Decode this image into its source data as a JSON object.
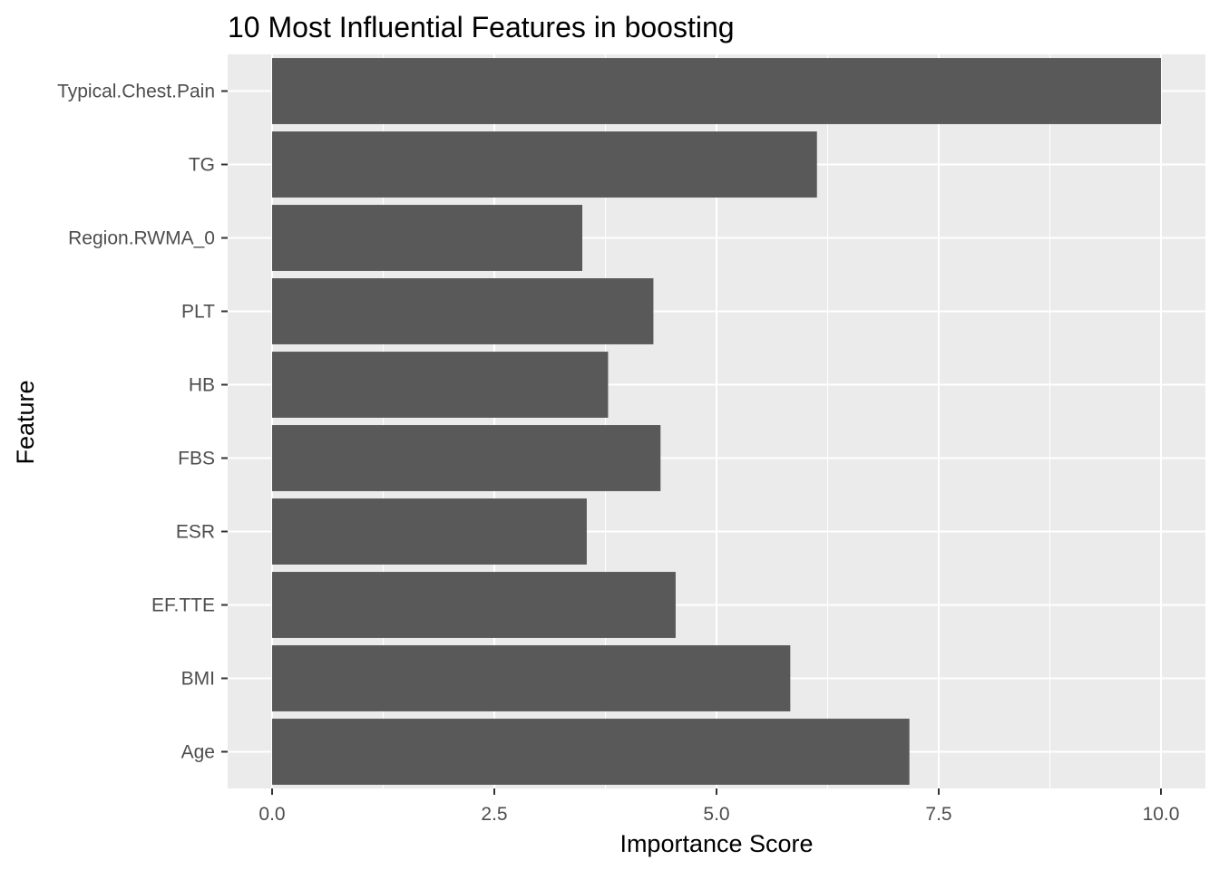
{
  "chart_data": {
    "type": "bar",
    "orientation": "horizontal",
    "title": "10 Most Influential Features in boosting",
    "xlabel": "Importance Score",
    "ylabel": "Feature",
    "categories": [
      "Age",
      "BMI",
      "EF.TTE",
      "ESR",
      "FBS",
      "HB",
      "PLT",
      "Region.RWMA_0",
      "TG",
      "Typical.Chest.Pain"
    ],
    "values": [
      7.17,
      5.83,
      4.54,
      3.54,
      4.37,
      3.78,
      4.29,
      3.49,
      6.13,
      10.0
    ],
    "xlim": [
      -0.5,
      10.5
    ],
    "xticks": [
      0,
      2.5,
      5,
      7.5,
      10
    ],
    "xtick_labels": [
      "0.0",
      "2.5",
      "5.0",
      "7.5",
      "10.0"
    ],
    "grid": true,
    "legend": "none",
    "colors": {
      "bar": "#595959",
      "panel": "#ebebeb",
      "grid": "#ffffff",
      "tick": "#333333",
      "tick_label": "#4d4d4d"
    }
  }
}
